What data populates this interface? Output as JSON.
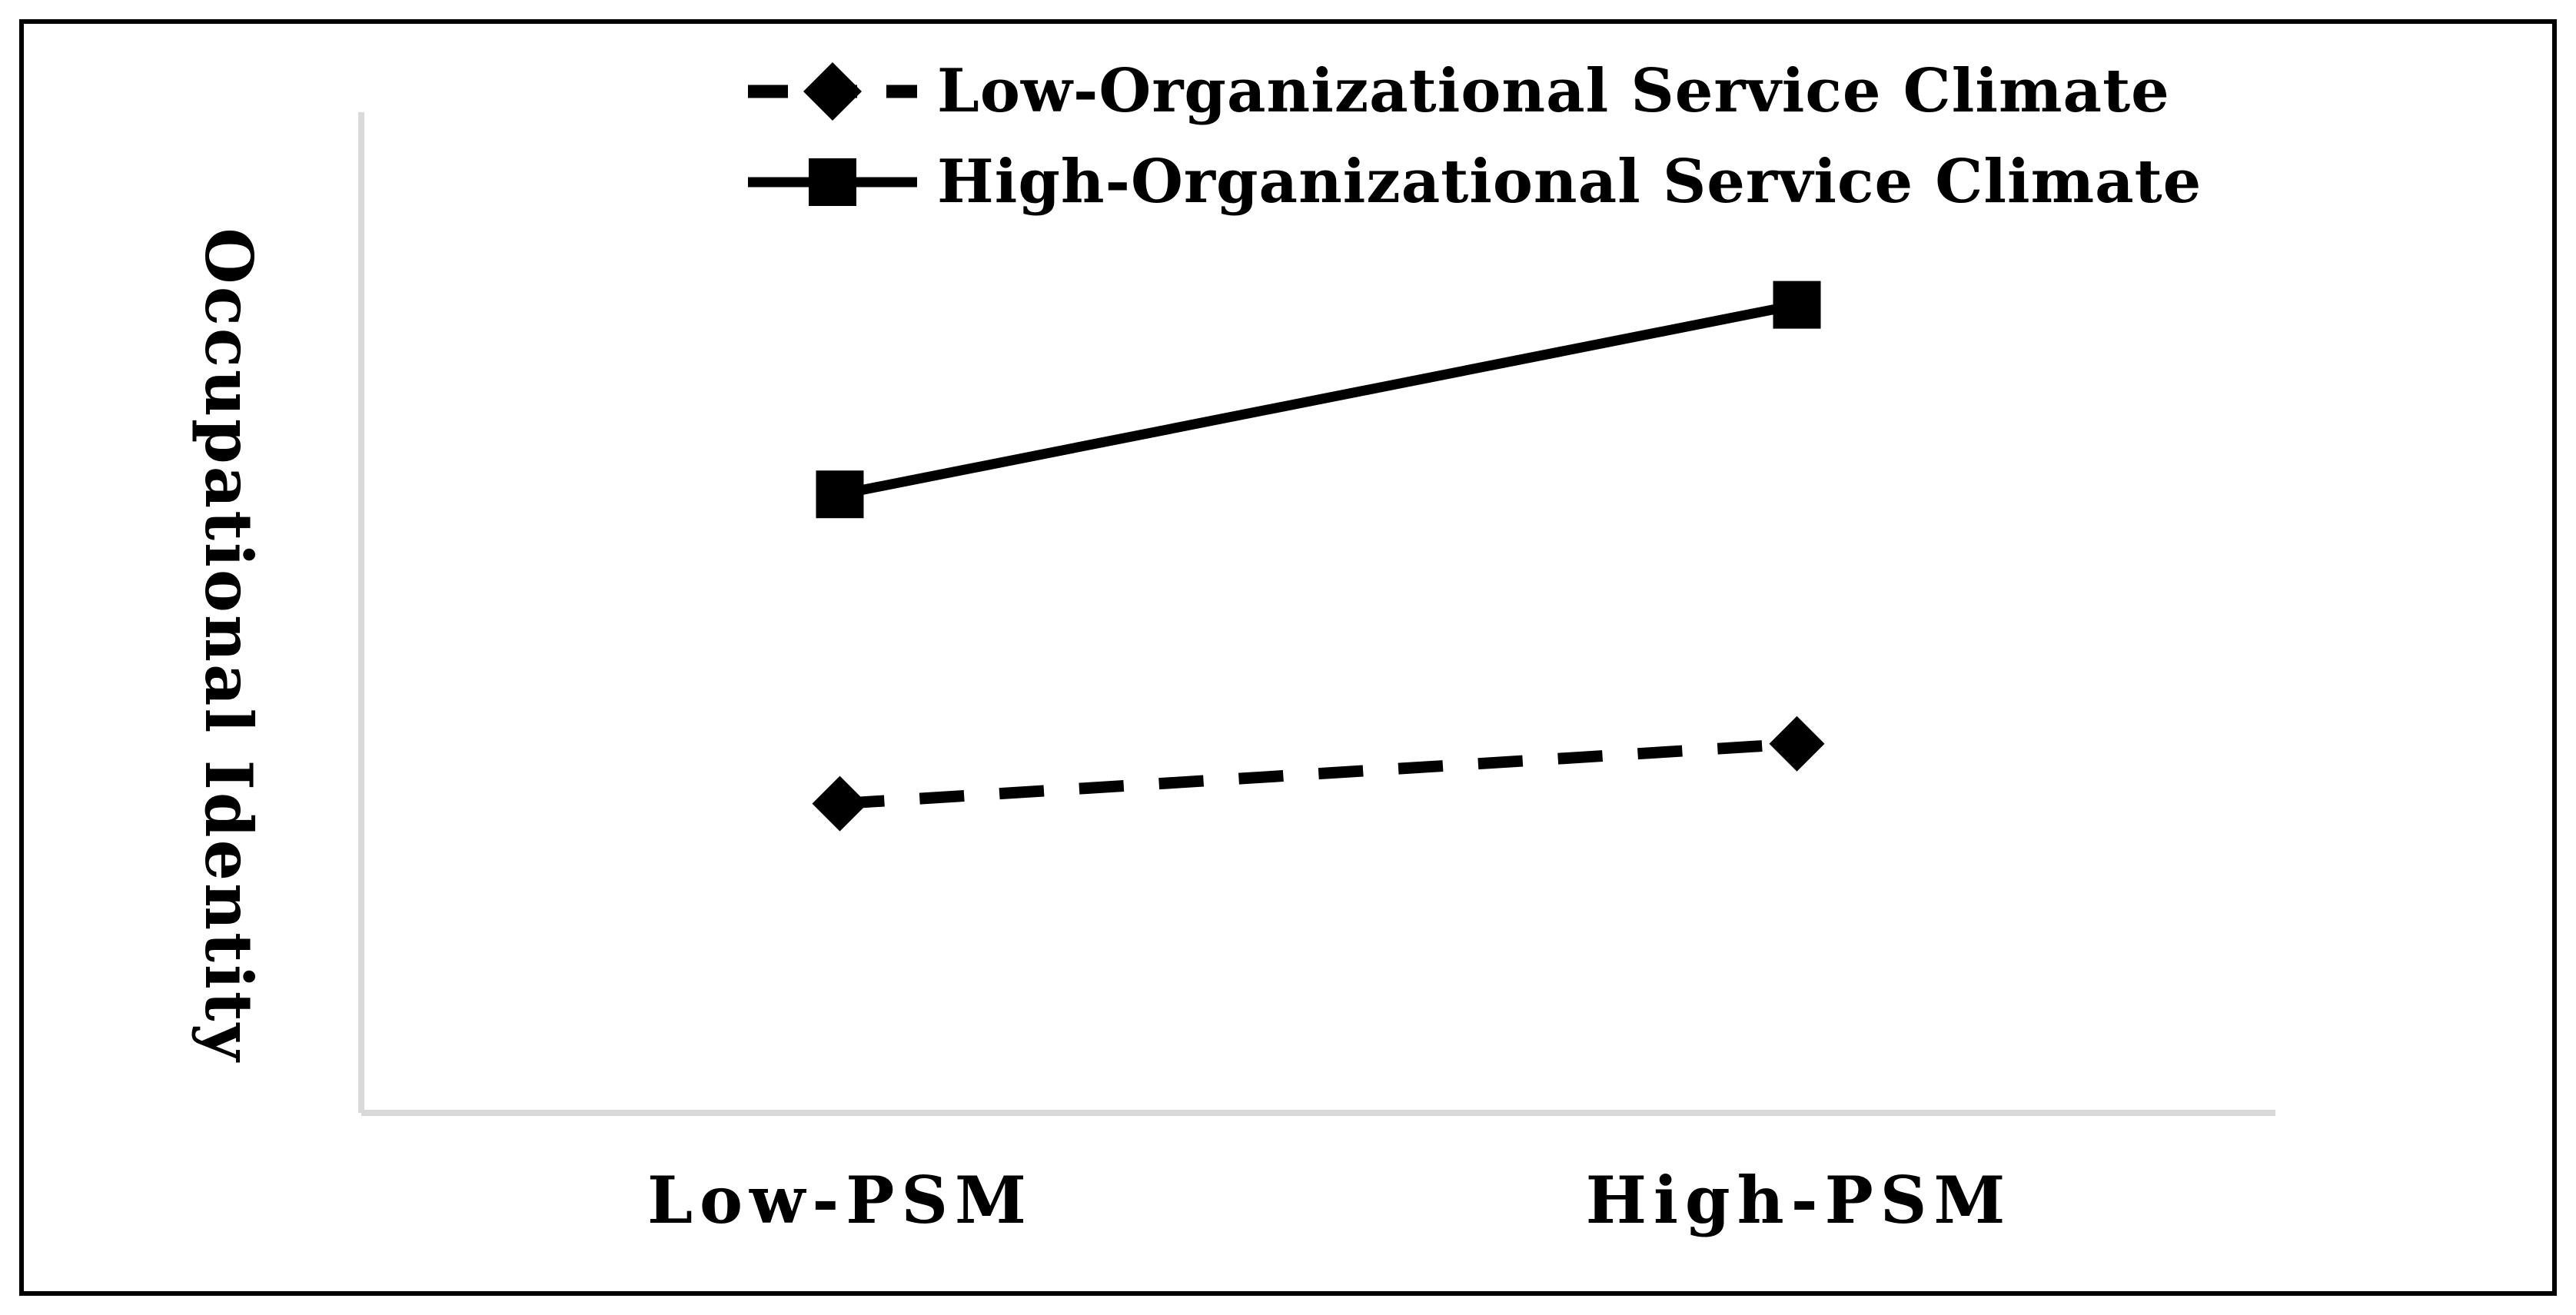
{
  "figure": {
    "background_color": "#ffffff",
    "border_color": "#000000",
    "text_color": "#000000"
  },
  "chart_data": {
    "type": "line",
    "title": "",
    "xlabel": "",
    "ylabel": "Occupational Identity",
    "categories": [
      "Low-PSM",
      "High-PSM"
    ],
    "series": [
      {
        "name": "Low-Organizational Service Climate",
        "values": [
          0.31,
          0.37
        ],
        "line_style": "dashed",
        "marker": "diamond",
        "color": "#000000"
      },
      {
        "name": "High-Organizational Service Climate",
        "values": [
          0.62,
          0.81
        ],
        "line_style": "solid",
        "marker": "square",
        "color": "#000000"
      }
    ],
    "ylim": [
      0,
      1
    ],
    "y_ticks_visible": false,
    "x_ticks_visible": true,
    "grid": false,
    "axis_color": "#d9d9d9",
    "legend_position": "top-center"
  }
}
